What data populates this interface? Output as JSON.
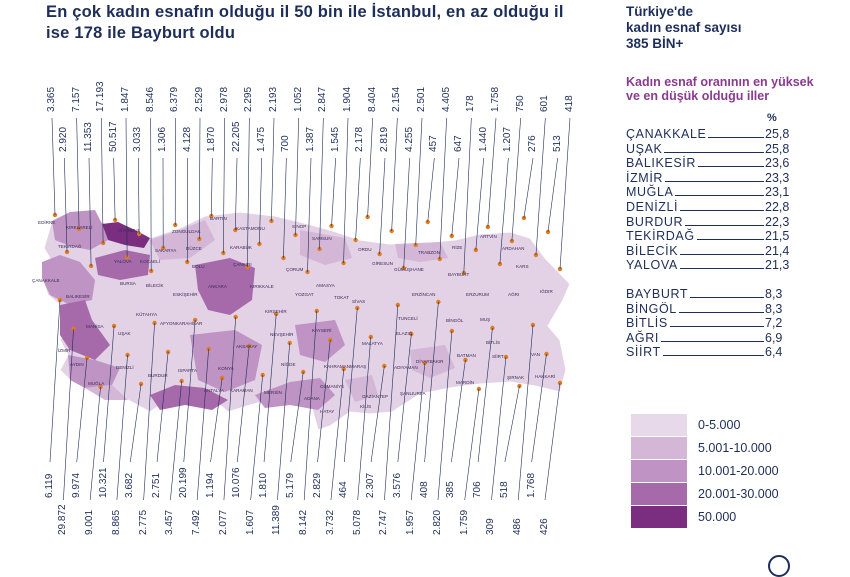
{
  "title": "En çok kadın esnafın olduğu il 50 bin ile İstanbul, en az olduğu il ise 178 ile Bayburt oldu",
  "stat": {
    "line1": "Türkiye'de",
    "line2": "kadın esnaf sayısı",
    "line3": "385 BİN+"
  },
  "ranking": {
    "heading": "Kadın esnaf oranının en yüksek ve en düşük olduğu iller",
    "unit": "%",
    "top": [
      {
        "name": "ÇANAKKALE",
        "value": "25,8"
      },
      {
        "name": "UŞAK",
        "value": "25,8"
      },
      {
        "name": "BALIKESİR",
        "value": "23,6"
      },
      {
        "name": "İZMİR",
        "value": "23,3"
      },
      {
        "name": "MUĞLA",
        "value": "23,1"
      },
      {
        "name": "DENİZLİ",
        "value": "22,8"
      },
      {
        "name": "BURDUR",
        "value": "22,3"
      },
      {
        "name": "TEKİRDAĞ",
        "value": "21,5"
      },
      {
        "name": "BİLECİK",
        "value": "21,4"
      },
      {
        "name": "YALOVA",
        "value": "21,3"
      }
    ],
    "bottom": [
      {
        "name": "BAYBURT",
        "value": "8,3"
      },
      {
        "name": "BİNGÖL",
        "value": "8,3"
      },
      {
        "name": "BİTLİS",
        "value": "7,2"
      },
      {
        "name": "AĞRI",
        "value": "6,9"
      },
      {
        "name": "SİİRT",
        "value": "6,4"
      }
    ]
  },
  "legend": [
    {
      "label": "0-5.000",
      "color": "#e8d9ea"
    },
    {
      "label": "5.001-10.000",
      "color": "#d4b7d7"
    },
    {
      "label": "10.001-20.000",
      "color": "#bf93c3"
    },
    {
      "label": "20.001-30.000",
      "color": "#a66aab"
    },
    {
      "label": "50.000",
      "color": "#7b2e80"
    }
  ],
  "top_numbers": [
    "3.365",
    "2.920",
    "7.157",
    "11.353",
    "17.193",
    "50.517",
    "1.847",
    "3.033",
    "8.546",
    "1.306",
    "6.379",
    "4.128",
    "2.529",
    "1.870",
    "2.978",
    "22.205",
    "2.295",
    "1.475",
    "2.193",
    "700",
    "1.052",
    "1.387",
    "2.847",
    "1.545",
    "1.904",
    "2.178",
    "8.404",
    "2.819",
    "2.154",
    "4.255",
    "2.501",
    "457",
    "4.405",
    "647",
    "178",
    "1.440",
    "1.758",
    "1.207",
    "750",
    "276",
    "601",
    "513",
    "418"
  ],
  "bottom_numbers": [
    "6.119",
    "29.872",
    "9.974",
    "9.001",
    "10.321",
    "8.865",
    "3.682",
    "2.775",
    "2.751",
    "3.457",
    "20.199",
    "7.492",
    "1.194",
    "2.077",
    "10.076",
    "1.607",
    "1.810",
    "11.389",
    "5.179",
    "8.142",
    "2.829",
    "3.732",
    "464",
    "5.078",
    "2.307",
    "2.747",
    "3.576",
    "1.957",
    "408",
    "2.820",
    "385",
    "1.759",
    "706",
    "309",
    "518",
    "486",
    "1.768",
    "426"
  ],
  "cities": [
    "EDİRNE",
    "KIRKLARELİ",
    "TEKİRDAĞ",
    "İSTANBUL",
    "ÇANAKKALE",
    "YALOVA",
    "KOCAELİ",
    "SAKARYA",
    "DÜZCE",
    "ZONGULDAK",
    "BARTIN",
    "KASTAMONU",
    "SİNOP",
    "SAMSUN",
    "ORDU",
    "GİRESUN",
    "TRABZON",
    "RİZE",
    "ARTVİN",
    "ARDAHAN",
    "KARS",
    "IĞDIR",
    "BALIKESİR",
    "BURSA",
    "BİLECİK",
    "ESKİŞEHİR",
    "BOLU",
    "KARABÜK",
    "ÇANKIRI",
    "ÇORUM",
    "AMASYA",
    "TOKAT",
    "GÜMÜŞHANE",
    "BAYBURT",
    "ERZURUM",
    "AĞRI",
    "ERZİNCAN",
    "SİVAS",
    "YOZGAT",
    "KIRIKKALE",
    "ANKARA",
    "KIRŞEHİR",
    "KÜTAHYA",
    "MANİSA",
    "İZMİR",
    "UŞAK",
    "AFYONKARAHİSAR",
    "AYDIN",
    "DENİZLİ",
    "MUĞLA",
    "BURDUR",
    "ISPARTA",
    "ANTALYA",
    "KONYA",
    "KARAMAN",
    "AKSARAY",
    "NEVŞEHİR",
    "NİĞDE",
    "KAYSERİ",
    "MALATYA",
    "ELAZIĞ",
    "TUNCELİ",
    "BİNGÖL",
    "MUŞ",
    "BİTLİS",
    "VAN",
    "HAKKARİ",
    "ŞIRNAK",
    "SİİRT",
    "BATMAN",
    "MARDİN",
    "DİYARBAKIR",
    "ADIYAMAN",
    "ŞANLIURFA",
    "GAZİANTEP",
    "KİLİS",
    "HATAY",
    "OSMANİYE",
    "ADANA",
    "MERSİN",
    "KAHRAMANMARAŞ"
  ]
}
